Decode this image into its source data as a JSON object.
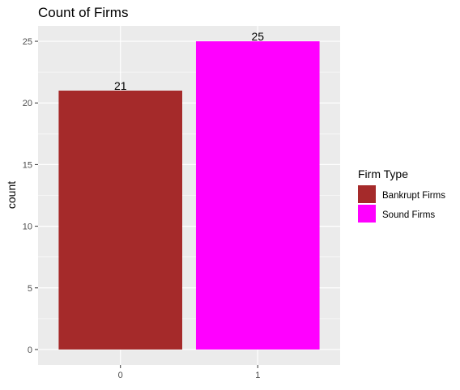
{
  "chart_data": {
    "type": "bar",
    "title": "Count of Firms",
    "xlabel": "",
    "ylabel": "count",
    "categories": [
      "0",
      "1"
    ],
    "values": [
      21,
      25
    ],
    "data_labels": [
      "21",
      "25"
    ],
    "ylim": [
      -1.25,
      26.25
    ],
    "yticks": [
      0,
      5,
      10,
      15,
      20,
      25
    ],
    "ytick_labels": [
      "0",
      "5",
      "10",
      "15",
      "20",
      "25"
    ],
    "grid": true,
    "legend": {
      "title": "Firm Type",
      "placement": "right",
      "entries": [
        {
          "name": "Bankrupt Firms",
          "color": "#a52a2a"
        },
        {
          "name": "Sound Firms",
          "color": "#ff00ff"
        }
      ]
    },
    "bar_colors": [
      "#a52a2a",
      "#ff00ff"
    ],
    "panel_color": "#ebebeb",
    "grid_color": "#ffffff"
  }
}
